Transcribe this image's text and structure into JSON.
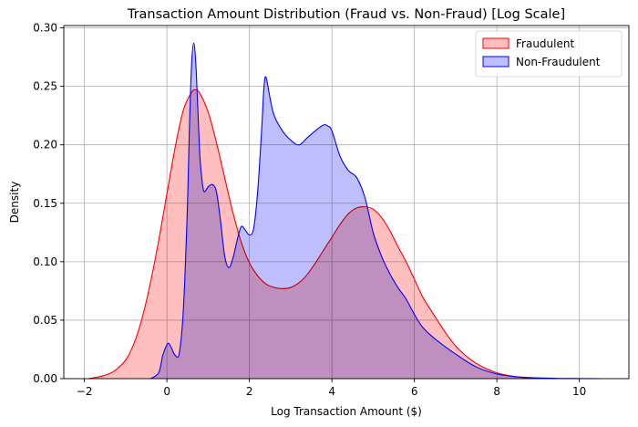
{
  "chart_data": {
    "type": "area",
    "title": "Transaction Amount Distribution (Fraud vs. Non-Fraud) [Log Scale]",
    "xlabel": "Log Transaction Amount ($)",
    "ylabel": "Density",
    "xlim": [
      -2.5,
      11.2
    ],
    "ylim": [
      0,
      0.302
    ],
    "xticks": [
      -2,
      0,
      2,
      4,
      6,
      8,
      10
    ],
    "yticks": [
      0.0,
      0.05,
      0.1,
      0.15,
      0.2,
      0.25,
      0.3
    ],
    "xtick_labels": [
      "−2",
      "0",
      "2",
      "4",
      "6",
      "8",
      "10"
    ],
    "ytick_labels": [
      "0.00",
      "0.05",
      "0.10",
      "0.15",
      "0.20",
      "0.25",
      "0.30"
    ],
    "grid": true,
    "legend_position": "top-right",
    "series": [
      {
        "name": "Fraudulent",
        "line_color": "#ff0000",
        "fill_color": "#ffbfbf",
        "x": [
          -1.9,
          -1.6,
          -1.3,
          -1.0,
          -0.8,
          -0.6,
          -0.4,
          -0.2,
          0.0,
          0.2,
          0.4,
          0.6,
          0.7,
          0.8,
          1.0,
          1.2,
          1.4,
          1.6,
          1.8,
          2.0,
          2.2,
          2.4,
          2.6,
          2.8,
          3.0,
          3.2,
          3.4,
          3.6,
          3.8,
          4.0,
          4.2,
          4.4,
          4.6,
          4.8,
          5.0,
          5.2,
          5.4,
          5.6,
          5.8,
          6.0,
          6.2,
          6.5,
          6.8,
          7.0,
          7.3,
          7.6,
          8.0,
          8.4,
          8.8,
          9.0
        ],
        "y": [
          0.0,
          0.002,
          0.006,
          0.016,
          0.03,
          0.052,
          0.082,
          0.118,
          0.158,
          0.198,
          0.23,
          0.245,
          0.247,
          0.244,
          0.228,
          0.202,
          0.172,
          0.142,
          0.117,
          0.099,
          0.088,
          0.081,
          0.078,
          0.077,
          0.078,
          0.082,
          0.089,
          0.099,
          0.11,
          0.121,
          0.132,
          0.141,
          0.146,
          0.147,
          0.145,
          0.138,
          0.127,
          0.113,
          0.1,
          0.085,
          0.07,
          0.053,
          0.037,
          0.028,
          0.018,
          0.011,
          0.005,
          0.002,
          0.0005,
          0.0
        ]
      },
      {
        "name": "Non-Fraudulent",
        "line_color": "#0000ff",
        "fill_color": "#bfbfff",
        "x": [
          -0.4,
          -0.2,
          -0.1,
          0.0,
          0.05,
          0.1,
          0.2,
          0.3,
          0.4,
          0.5,
          0.55,
          0.6,
          0.65,
          0.7,
          0.75,
          0.8,
          0.85,
          0.9,
          1.0,
          1.1,
          1.2,
          1.3,
          1.4,
          1.5,
          1.6,
          1.7,
          1.8,
          1.9,
          2.0,
          2.1,
          2.2,
          2.3,
          2.35,
          2.4,
          2.5,
          2.6,
          2.8,
          3.0,
          3.2,
          3.4,
          3.6,
          3.8,
          3.9,
          4.0,
          4.2,
          4.4,
          4.6,
          4.8,
          5.0,
          5.2,
          5.4,
          5.6,
          5.8,
          6.0,
          6.2,
          6.5,
          7.0,
          7.5,
          8.0,
          8.5,
          9.0,
          9.5,
          10.0,
          10.5
        ],
        "y": [
          0.0,
          0.005,
          0.02,
          0.029,
          0.03,
          0.027,
          0.02,
          0.022,
          0.06,
          0.15,
          0.22,
          0.27,
          0.287,
          0.27,
          0.23,
          0.19,
          0.17,
          0.16,
          0.164,
          0.166,
          0.16,
          0.135,
          0.105,
          0.095,
          0.103,
          0.118,
          0.13,
          0.127,
          0.123,
          0.128,
          0.16,
          0.215,
          0.248,
          0.258,
          0.24,
          0.225,
          0.212,
          0.204,
          0.2,
          0.206,
          0.212,
          0.217,
          0.216,
          0.212,
          0.19,
          0.178,
          0.172,
          0.155,
          0.125,
          0.105,
          0.09,
          0.078,
          0.068,
          0.055,
          0.044,
          0.034,
          0.021,
          0.01,
          0.004,
          0.0015,
          0.0006,
          0.0002,
          0.0001,
          0.0
        ]
      }
    ]
  }
}
